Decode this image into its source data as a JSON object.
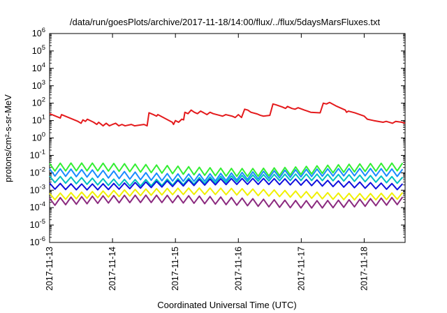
{
  "chart_data": {
    "type": "line",
    "title": "/data/run/goesPlots/archive/2017-11-18/14:00/flux/../flux/5daysMarsFluxes.txt",
    "xlabel": "Coordinated Universal Time (UTC)",
    "ylabel": "protons/cm²-s-sr-MeV",
    "y_scale": "log",
    "ylim_exp": [
      -6,
      6
    ],
    "y_ticks_exp": [
      -6,
      -5,
      -4,
      -3,
      -2,
      -1,
      0,
      1,
      2,
      3,
      4,
      5,
      6
    ],
    "x_ticks": [
      "2017-11-13",
      "2017-11-14",
      "2017-11-15",
      "2017-11-16",
      "2017-11-17",
      "2017-11-18"
    ],
    "xlim_days": [
      0,
      5.65
    ],
    "grid": false,
    "legend": "none",
    "series": [
      {
        "color": "#e41a1c",
        "points": [
          [
            0,
            25
          ],
          [
            0.17,
            14
          ],
          [
            0.19,
            22
          ],
          [
            0.45,
            9
          ],
          [
            0.5,
            7
          ],
          [
            0.53,
            11
          ],
          [
            0.57,
            9
          ],
          [
            0.6,
            12
          ],
          [
            0.7,
            8
          ],
          [
            0.75,
            6
          ],
          [
            0.78,
            8
          ],
          [
            0.85,
            5
          ],
          [
            0.9,
            7
          ],
          [
            0.95,
            5
          ],
          [
            1.0,
            6
          ],
          [
            1.05,
            7
          ],
          [
            1.1,
            5
          ],
          [
            1.15,
            6
          ],
          [
            1.2,
            5
          ],
          [
            1.3,
            6
          ],
          [
            1.35,
            5
          ],
          [
            1.5,
            6
          ],
          [
            1.55,
            5
          ],
          [
            1.58,
            28
          ],
          [
            1.65,
            22
          ],
          [
            1.7,
            18
          ],
          [
            1.72,
            22
          ],
          [
            1.95,
            8
          ],
          [
            1.97,
            6
          ],
          [
            2.0,
            10
          ],
          [
            2.05,
            8
          ],
          [
            2.1,
            12
          ],
          [
            2.13,
            11
          ],
          [
            2.15,
            30
          ],
          [
            2.2,
            25
          ],
          [
            2.25,
            40
          ],
          [
            2.3,
            30
          ],
          [
            2.35,
            25
          ],
          [
            2.4,
            35
          ],
          [
            2.45,
            28
          ],
          [
            2.5,
            22
          ],
          [
            2.55,
            30
          ],
          [
            2.6,
            25
          ],
          [
            2.7,
            20
          ],
          [
            2.75,
            18
          ],
          [
            2.8,
            22
          ],
          [
            2.9,
            18
          ],
          [
            2.95,
            15
          ],
          [
            3.0,
            22
          ],
          [
            3.05,
            15
          ],
          [
            3.1,
            45
          ],
          [
            3.15,
            40
          ],
          [
            3.2,
            30
          ],
          [
            3.3,
            24
          ],
          [
            3.35,
            20
          ],
          [
            3.4,
            18
          ],
          [
            3.5,
            20
          ],
          [
            3.55,
            90
          ],
          [
            3.6,
            80
          ],
          [
            3.7,
            60
          ],
          [
            3.75,
            50
          ],
          [
            3.78,
            65
          ],
          [
            3.85,
            50
          ],
          [
            3.9,
            45
          ],
          [
            3.95,
            55
          ],
          [
            4.05,
            40
          ],
          [
            4.1,
            35
          ],
          [
            4.15,
            30
          ],
          [
            4.3,
            28
          ],
          [
            4.35,
            100
          ],
          [
            4.4,
            90
          ],
          [
            4.45,
            110
          ],
          [
            4.55,
            70
          ],
          [
            4.7,
            40
          ],
          [
            4.72,
            30
          ],
          [
            4.75,
            35
          ],
          [
            4.85,
            28
          ],
          [
            5.0,
            18
          ],
          [
            5.05,
            12
          ],
          [
            5.15,
            10
          ],
          [
            5.3,
            8
          ],
          [
            5.35,
            9
          ],
          [
            5.45,
            7
          ],
          [
            5.5,
            9
          ],
          [
            5.6,
            8
          ],
          [
            5.65,
            7
          ]
        ]
      },
      {
        "color": "#33ee33",
        "base": 0.015,
        "amp": 0.8
      },
      {
        "color": "#1a8cff",
        "base": 0.0075,
        "amp": 0.75
      },
      {
        "color": "#00c0c0",
        "base": 0.0038,
        "amp": 0.65
      },
      {
        "color": "#1010dd",
        "base": 0.0022,
        "amp": 0.6
      },
      {
        "color": "#f0f000",
        "base": 0.0006,
        "amp": 0.65
      },
      {
        "color": "#8b2a7f",
        "base": 0.00022,
        "amp": 0.75
      }
    ]
  }
}
